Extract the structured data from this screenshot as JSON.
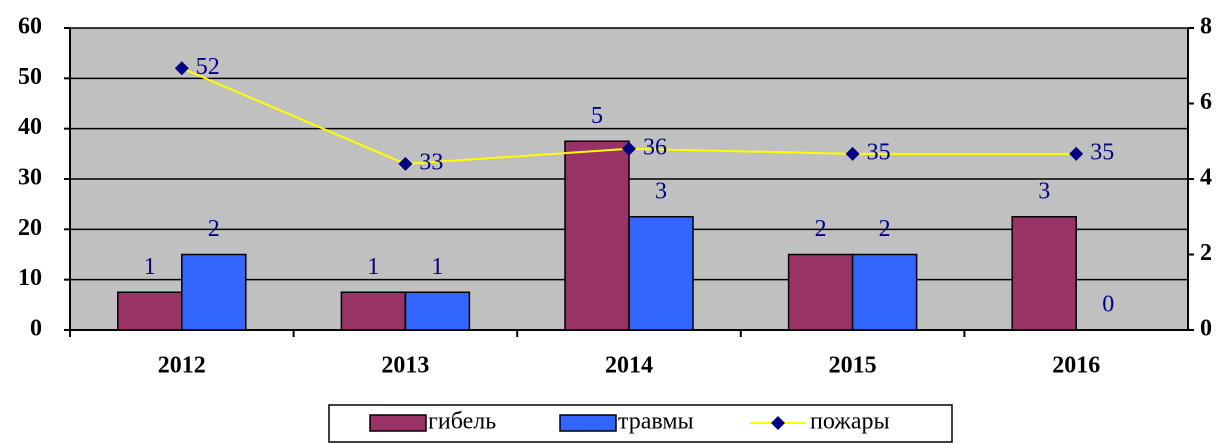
{
  "chart_data": {
    "type": "bar",
    "categories": [
      "2012",
      "2013",
      "2014",
      "2015",
      "2016"
    ],
    "series": [
      {
        "name": "гибель",
        "color": "#993366",
        "values": [
          1,
          1,
          5,
          2,
          3
        ],
        "axis": "y2"
      },
      {
        "name": "травмы",
        "color": "#3366ff",
        "values": [
          2,
          1,
          3,
          2,
          0
        ],
        "axis": "y2"
      },
      {
        "name": "пожары",
        "color": "#ffff00",
        "marker_color": "#000080",
        "type": "line",
        "values": [
          52,
          33,
          36,
          35,
          35
        ]
      }
    ],
    "ylim": [
      0,
      60
    ],
    "yticks": [
      0,
      10,
      20,
      30,
      40,
      50,
      60
    ],
    "y2lim": [
      0,
      8
    ],
    "y2ticks": [
      0,
      2,
      4,
      6,
      8
    ],
    "grid": true,
    "legend": "bottom"
  }
}
